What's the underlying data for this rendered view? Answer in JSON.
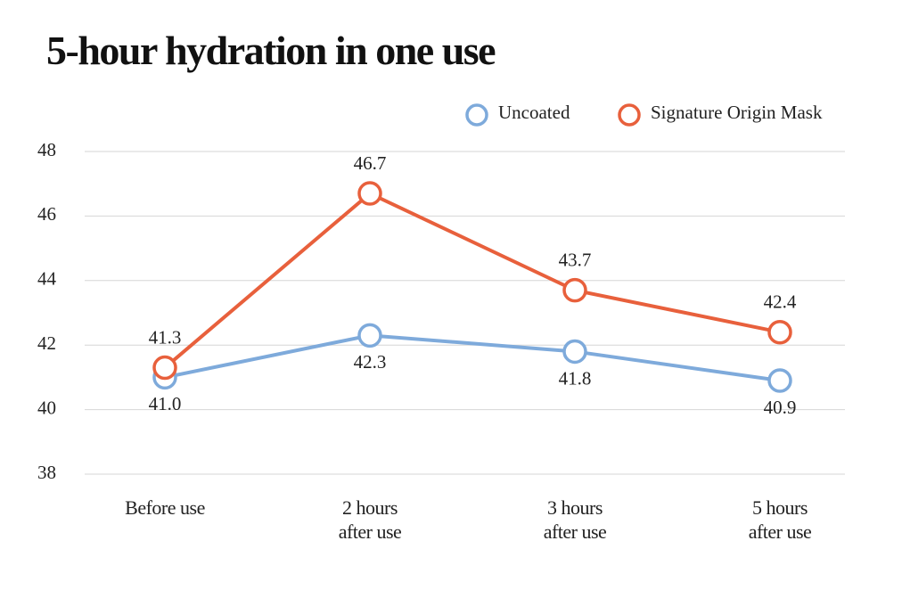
{
  "chart_data": {
    "type": "line",
    "title": "5-hour hydration in one use",
    "categories": [
      "Before use",
      "2 hours\nafter use",
      "3 hours\nafter use",
      "5 hours\nafter use"
    ],
    "series": [
      {
        "name": "Uncoated",
        "color": "#7eaadb",
        "values": [
          41.0,
          42.3,
          41.8,
          40.9
        ],
        "value_labels": [
          "41.0",
          "42.3",
          "41.8",
          "40.9"
        ]
      },
      {
        "name": "Signature Origin Mask",
        "color": "#e8603c",
        "values": [
          41.3,
          46.7,
          43.7,
          42.4
        ],
        "value_labels": [
          "41.3",
          "46.7",
          "43.7",
          "42.4"
        ]
      }
    ],
    "ylim": [
      38,
      48
    ],
    "yticks": [
      38,
      40,
      42,
      44,
      46,
      48
    ],
    "grid": true,
    "legend": "top-right"
  }
}
